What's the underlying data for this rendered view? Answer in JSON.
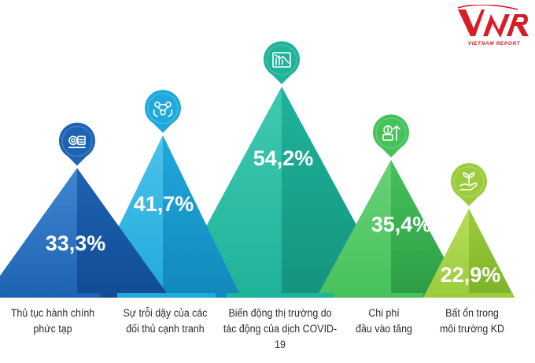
{
  "brand": {
    "logo_text": "VNR",
    "logo_subtitle": "VIETNAM REPORT",
    "color": "#d61e28"
  },
  "chart_data": {
    "type": "bar",
    "categories": [
      "Thủ tục hành chính phức tạp",
      "Sự trỗi dậy của các đối thủ cạnh tranh",
      "Biến động thị trường do tác động của dịch COVID-19",
      "Chi phí đầu vào tăng",
      "Bất ổn trong môi trường KD"
    ],
    "category_lines": [
      [
        "Thủ tục hành chính",
        "phức tạp"
      ],
      [
        "Sự trỗi dậy của các",
        "đối thủ cạnh tranh"
      ],
      [
        "Biến động thị trường do",
        "tác động của dịch COVID-19"
      ],
      [
        "Chi phí",
        "đầu vào tăng"
      ],
      [
        "Bất ổn trong",
        "môi trường KD"
      ]
    ],
    "values": [
      33.3,
      41.7,
      54.2,
      35.4,
      22.9
    ],
    "value_labels": [
      "33,3%",
      "41,7%",
      "54,2%",
      "35,4%",
      "22,9%"
    ],
    "unit": "%",
    "colors": [
      "#1d63b3",
      "#20a9dc",
      "#1fb39a",
      "#46c25b",
      "#9ccc3d"
    ],
    "icons": [
      "wallet-document-icon",
      "competition-network-icon",
      "market-decline-chart-icon",
      "rising-cost-coins-icon",
      "hand-plant-icon"
    ],
    "ylim": [
      0,
      54.2
    ],
    "grid": false,
    "legend": "none"
  }
}
